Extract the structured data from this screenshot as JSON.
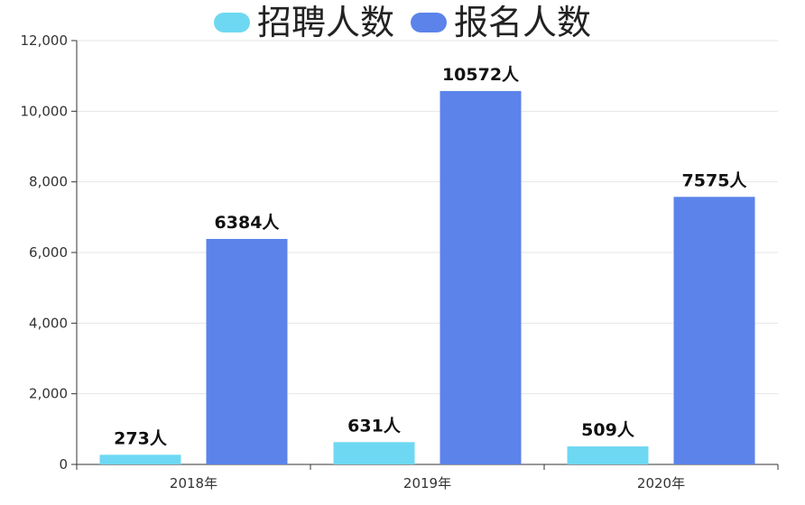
{
  "chart_data": {
    "type": "bar",
    "categories": [
      "2018年",
      "2019年",
      "2020年"
    ],
    "series": [
      {
        "name": "招聘人数",
        "values": [
          273,
          631,
          509
        ],
        "color": "#6ed8f2",
        "labels": [
          "273人",
          "631人",
          "509人"
        ]
      },
      {
        "name": "报名人数",
        "values": [
          6384,
          10572,
          7575
        ],
        "color": "#5b83ea",
        "labels": [
          "6384人",
          "10572人",
          "7575人"
        ]
      }
    ],
    "ylim": [
      0,
      12000
    ],
    "yticks": [
      0,
      2000,
      4000,
      6000,
      8000,
      10000,
      12000
    ],
    "ytick_labels": [
      "0",
      "2,000",
      "4,000",
      "6,000",
      "8,000",
      "10,000",
      "12,000"
    ],
    "grid": true,
    "legend_position": "top-center"
  }
}
